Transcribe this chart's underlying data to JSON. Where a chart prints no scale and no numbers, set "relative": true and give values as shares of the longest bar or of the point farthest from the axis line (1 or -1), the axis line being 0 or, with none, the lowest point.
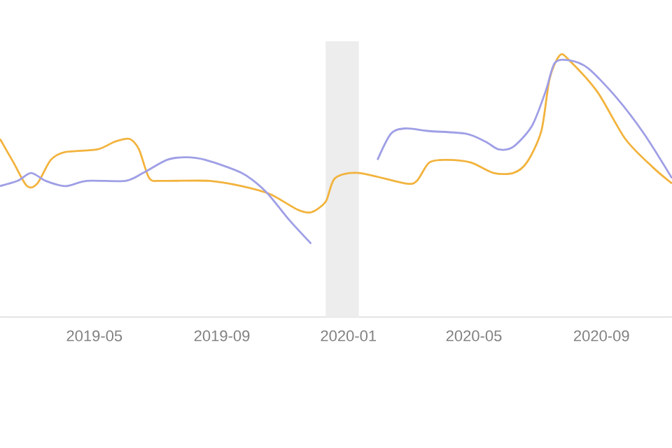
{
  "chart_data": {
    "type": "line",
    "relative": true,
    "xlim": [
      "2019-01-30",
      "2020-11-08"
    ],
    "xticks": [
      {
        "value": "2019-05",
        "label": "2019-05"
      },
      {
        "value": "2019-09",
        "label": "2019-09"
      },
      {
        "value": "2020-01",
        "label": "2020-01"
      },
      {
        "value": "2020-05",
        "label": "2020-05"
      },
      {
        "value": "2020-09",
        "label": "2020-09"
      }
    ],
    "bands": [
      {
        "axis": "x",
        "from": "2019-12-10",
        "to": "2020-01-11",
        "color": "#ededed"
      }
    ],
    "series": [
      {
        "color": "#f2b33d",
        "x": [
          "2019-01-30",
          "2019-02-12",
          "2019-02-25",
          "2019-03-07",
          "2019-03-20",
          "2019-04-03",
          "2019-05-04",
          "2019-05-21",
          "2019-06-04",
          "2019-06-13",
          "2019-06-23",
          "2019-07-06",
          "2019-08-20",
          "2019-09-20",
          "2019-10-17",
          "2019-11-13",
          "2019-11-26",
          "2019-12-10",
          "2019-12-19",
          "2020-01-11",
          "2020-02-25",
          "2020-03-07",
          "2020-03-19",
          "2020-04-05",
          "2020-04-28",
          "2020-05-20",
          "2020-06-08",
          "2020-06-21",
          "2020-07-05",
          "2020-07-13",
          "2020-07-23",
          "2020-08-01",
          "2020-08-28",
          "2020-09-24",
          "2020-10-21",
          "2020-11-08"
        ],
        "values": [
          0.68,
          0.59,
          0.5,
          0.51,
          0.6,
          0.63,
          0.64,
          0.67,
          0.68,
          0.64,
          0.53,
          0.52,
          0.52,
          0.5,
          0.47,
          0.41,
          0.4,
          0.44,
          0.53,
          0.55,
          0.51,
          0.52,
          0.59,
          0.6,
          0.59,
          0.55,
          0.55,
          0.59,
          0.71,
          0.91,
          1.0,
          0.98,
          0.86,
          0.68,
          0.57,
          0.51
        ]
      },
      {
        "color": "#9f9fe6",
        "x": [
          "2019-01-30",
          "2019-02-16",
          "2019-03-01",
          "2019-03-15",
          "2019-04-03",
          "2019-04-24",
          "2019-05-31",
          "2019-06-17",
          "2019-07-10",
          "2019-07-28",
          "2019-08-16",
          "2019-09-20",
          "2019-10-13",
          "2019-11-05",
          "2019-11-26",
          "2019-12-28",
          "2020-01-29",
          "2020-02-11",
          "2020-02-25",
          "2020-03-19",
          "2020-04-23",
          "2020-05-12",
          "2020-05-25",
          "2020-06-08",
          "2020-06-26",
          "2020-07-09",
          "2020-07-18",
          "2020-08-01",
          "2020-08-19",
          "2020-09-15",
          "2020-10-12",
          "2020-11-08"
        ],
        "values": [
          0.5,
          0.52,
          0.55,
          0.52,
          0.5,
          0.52,
          0.52,
          0.55,
          0.6,
          0.61,
          0.6,
          0.55,
          0.48,
          0.37,
          0.28,
          null,
          0.6,
          0.7,
          0.72,
          0.71,
          0.7,
          0.67,
          0.64,
          0.65,
          0.73,
          0.86,
          0.97,
          0.98,
          0.95,
          0.84,
          0.7,
          0.53
        ]
      }
    ]
  }
}
